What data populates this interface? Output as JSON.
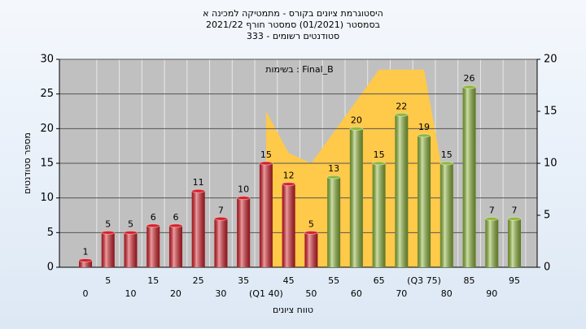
{
  "chart_data": {
    "type": "bar",
    "title": "היסטוגרמת ציונים בקורס - מתמטיקה למכינה א",
    "subtitle": "בסמסטר (01/2021) סמסטר חורף 2021/22",
    "subtitle2": "סטודנטים רשומים - 333",
    "annotation": "בשימות : Final_B",
    "x_label": "טווח ציונים",
    "y_label": "מספר סטודנטים",
    "categories": [
      "0",
      "5",
      "10",
      "15",
      "20",
      "25",
      "30",
      "35",
      "(Q1 40)",
      "45",
      "50",
      "55",
      "60",
      "65",
      "70",
      "(Q3 75)",
      "80",
      "85",
      "90",
      "95"
    ],
    "values": [
      1,
      5,
      5,
      6,
      6,
      11,
      7,
      10,
      15,
      12,
      5,
      13,
      20,
      15,
      22,
      19,
      15,
      26,
      7,
      7
    ],
    "colors": [
      "#d8202a",
      "#d8202a",
      "#d8202a",
      "#d8202a",
      "#d8202a",
      "#d8202a",
      "#d8202a",
      "#d8202a",
      "#d8202a",
      "#d8202a",
      "#d8202a",
      "#8fb83a",
      "#8fb83a",
      "#8fb83a",
      "#8fb83a",
      "#8fb83a",
      "#8fb83a",
      "#8fb83a",
      "#8fb83a",
      "#8fb83a"
    ],
    "area": {
      "axis": "y2",
      "color": "#ffc94a",
      "values": [
        null,
        null,
        null,
        null,
        null,
        null,
        null,
        null,
        15,
        11,
        10,
        13,
        16,
        19,
        19,
        19,
        7,
        null,
        null,
        null
      ]
    },
    "ylim": [
      0,
      30
    ],
    "yticks": [
      0,
      5,
      10,
      15,
      20,
      25,
      30
    ],
    "y2lim": [
      0,
      20
    ],
    "y2ticks": [
      0,
      5,
      10,
      15,
      20
    ],
    "grid": true
  }
}
